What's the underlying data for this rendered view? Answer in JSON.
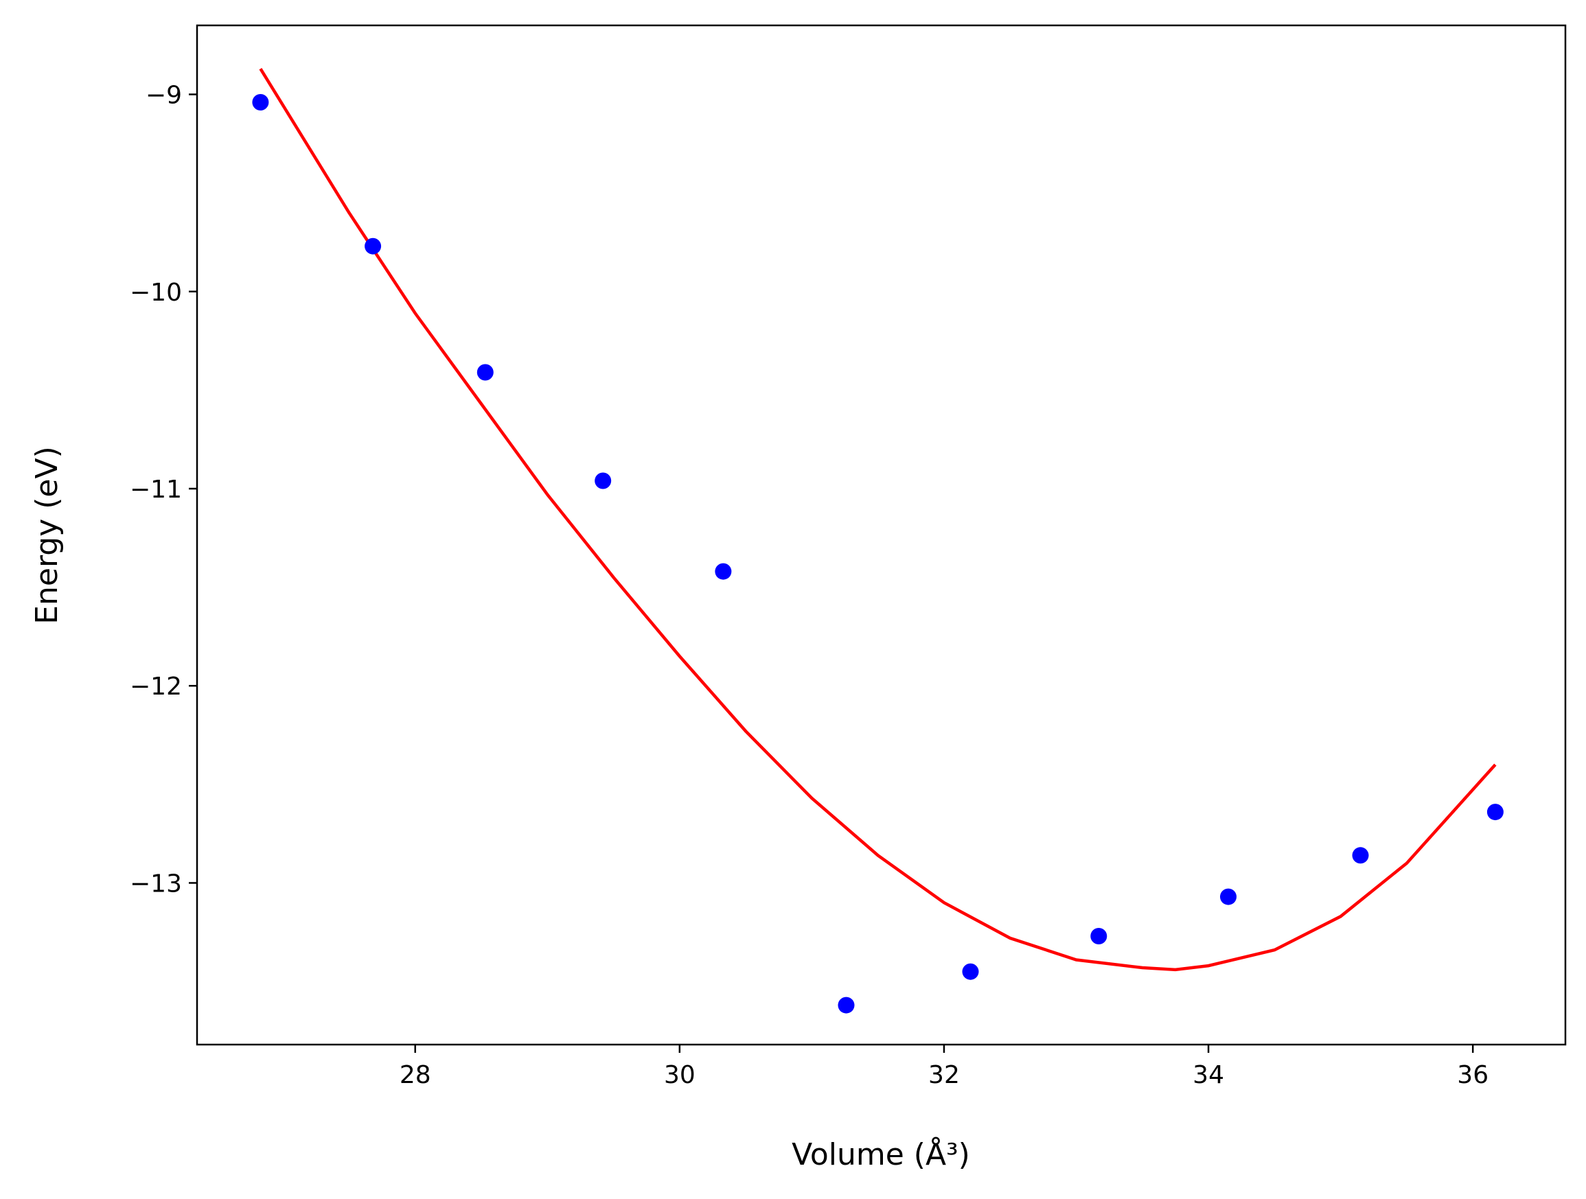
{
  "chart_data": {
    "type": "scatter",
    "xlabel": "Volume (Å³)",
    "ylabel": "Energy (eV)",
    "xlim": [
      26.35,
      36.7
    ],
    "ylim": [
      -13.82,
      -8.65
    ],
    "xticks": [
      28,
      30,
      32,
      34,
      36
    ],
    "yticks": [
      -9,
      -10,
      -11,
      -12,
      -13
    ],
    "xtick_labels": [
      "28",
      "30",
      "32",
      "34",
      "36"
    ],
    "ytick_labels": [
      "−9",
      "−10",
      "−11",
      "−12",
      "−13"
    ],
    "grid": false,
    "series": [
      {
        "kind": "points",
        "color": "#0000ff",
        "x": [
          26.83,
          27.68,
          28.53,
          29.42,
          30.33,
          31.26,
          32.2,
          33.17,
          34.15,
          35.15,
          36.17
        ],
        "y": [
          -9.04,
          -9.77,
          -10.41,
          -10.96,
          -11.42,
          -13.62,
          -13.45,
          -13.27,
          -13.07,
          -12.86,
          -12.64
        ]
      },
      {
        "kind": "fit-line",
        "color": "#ff0000",
        "x": [
          26.83,
          27.5,
          28.0,
          28.5,
          29.0,
          29.5,
          30.0,
          30.5,
          31.0,
          31.5,
          32.0,
          32.5,
          33.0,
          33.5,
          33.75,
          34.0,
          34.5,
          35.0,
          35.5,
          36.17
        ],
        "y": [
          -8.87,
          -9.6,
          -10.11,
          -10.57,
          -11.03,
          -11.45,
          -11.85,
          -12.23,
          -12.57,
          -12.86,
          -13.1,
          -13.28,
          -13.39,
          -13.43,
          -13.44,
          -13.42,
          -13.34,
          -13.17,
          -12.9,
          -12.4
        ]
      }
    ]
  }
}
